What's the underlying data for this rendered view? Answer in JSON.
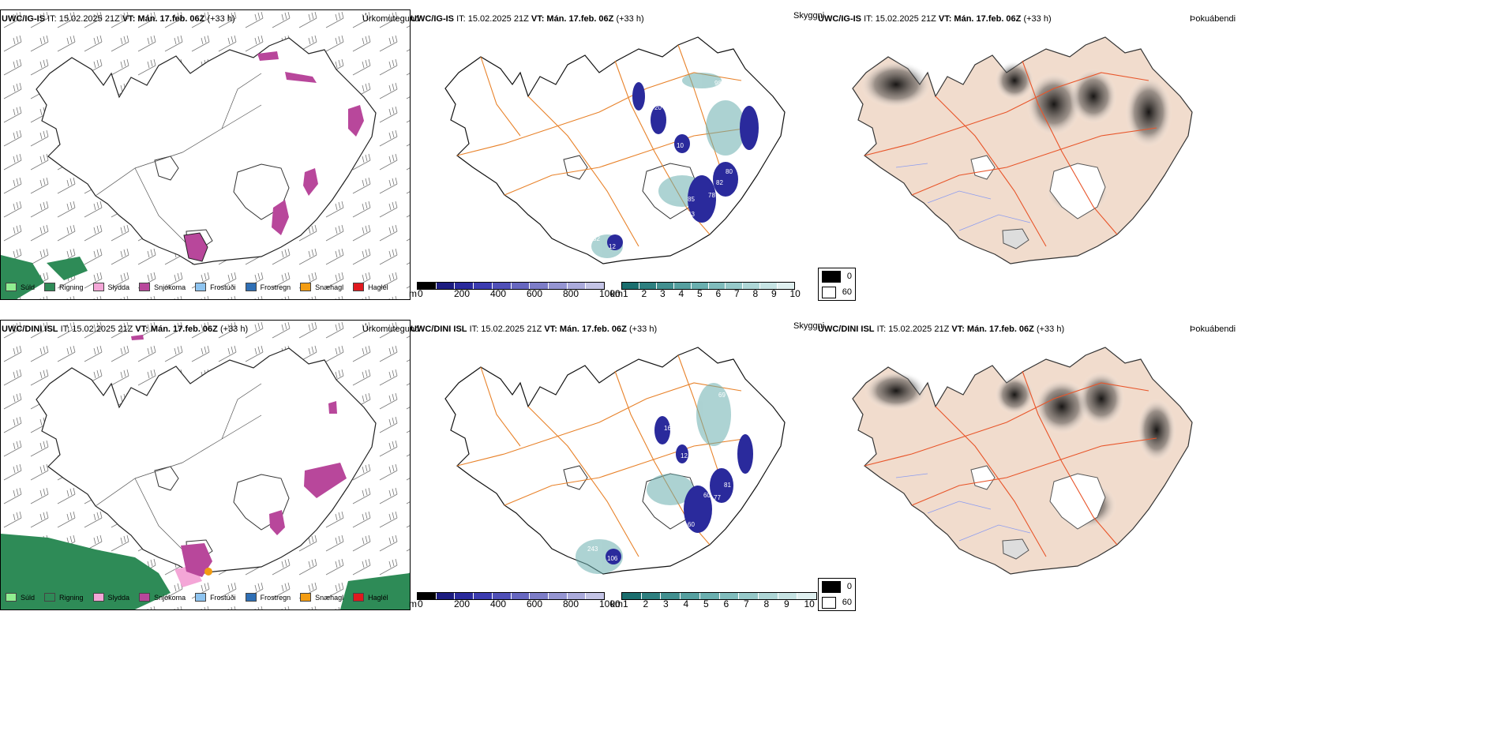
{
  "rows": [
    {
      "model": "UWC/IG-IS",
      "it": "IT: 15.02.2025 21Z",
      "vt": "VT: Mán. 17.feb. 06Z",
      "lead": "(+33 h)",
      "titles": {
        "precip": "Úrkomutegund",
        "vis": "Skyggni",
        "fog": "Þokuábendi"
      },
      "vis_labels": [
        "52",
        "12",
        "20",
        "10",
        "85",
        "63",
        "78",
        "82",
        "80",
        "12",
        "87",
        "98"
      ]
    },
    {
      "model": "UWC/DINI ISL",
      "it": "IT: 15.02.2025 21Z",
      "vt": "VT: Mán. 17.feb. 06Z",
      "lead": "(+33 h)",
      "titles": {
        "precip": "Úrkomutegund",
        "vis": "Skyggni",
        "fog": "Þokuábendi"
      },
      "vis_labels": [
        "243",
        "106",
        "60",
        "60",
        "77",
        "81",
        "12",
        "16",
        "69"
      ]
    }
  ],
  "precip_legend": [
    {
      "label": "Súld",
      "color": "#90EE90"
    },
    {
      "label": "Rigning",
      "color": "#2E8B57"
    },
    {
      "label": "Slydda",
      "color": "#F4A6D7"
    },
    {
      "label": "Snjókoma",
      "color": "#B8479B"
    },
    {
      "label": "Frostúði",
      "color": "#8EC4F0"
    },
    {
      "label": "Frostregn",
      "color": "#2F6FB5"
    },
    {
      "label": "Snæhagl",
      "color": "#F39C12"
    },
    {
      "label": "Haglél",
      "color": "#E0191F"
    }
  ],
  "cloud_base": {
    "unit": "m",
    "ticks": [
      "0",
      "200",
      "400",
      "600",
      "800",
      "1000"
    ],
    "colors": [
      "#000000",
      "#1c1c80",
      "#2a2a9c",
      "#3b3bb0",
      "#5050b8",
      "#6767c0",
      "#7d7dc8",
      "#9595d2",
      "#ababdc",
      "#c4c4e6"
    ]
  },
  "visibility": {
    "unit": "km",
    "ticks": [
      "1",
      "2",
      "3",
      "4",
      "5",
      "6",
      "7",
      "8",
      "9",
      "10"
    ],
    "colors": [
      "#1a6e6e",
      "#2e8080",
      "#429090",
      "#56a0a0",
      "#6aafaf",
      "#80bcbc",
      "#96c9c9",
      "#aed6d6",
      "#c6e3e3",
      "#e0f0f0"
    ]
  },
  "fog_legend": [
    {
      "label": "0",
      "color": "#000000"
    },
    {
      "label": "60",
      "color": "#ffffff"
    }
  ]
}
